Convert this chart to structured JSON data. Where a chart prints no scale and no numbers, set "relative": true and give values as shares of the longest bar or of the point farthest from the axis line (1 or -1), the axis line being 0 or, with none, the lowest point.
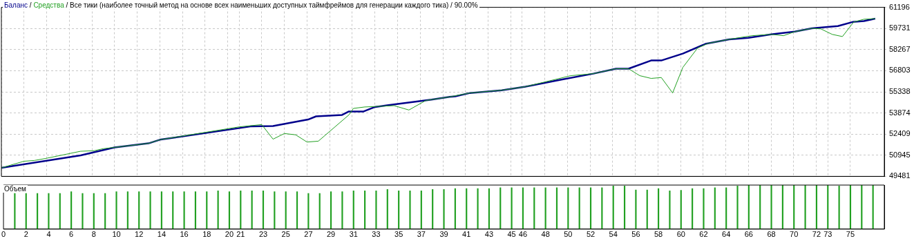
{
  "chart_data": [
    {
      "type": "line",
      "title": "Все тики (наиболее точный метод на основе всех наименьших доступных таймфреймов для генерации каждого тика) / 90.00%",
      "annotations": [
        "/",
        "/"
      ],
      "legend": "top left",
      "grid": true,
      "tick_labels": "y",
      "xlim": [
        0,
        78
      ],
      "xticks": [
        0,
        2,
        4,
        6,
        8,
        10,
        12,
        14,
        16,
        18,
        20,
        21,
        23,
        25,
        27,
        29,
        31,
        33,
        35,
        37,
        39,
        41,
        43,
        45,
        46,
        48,
        50,
        52,
        54,
        56,
        58,
        60,
        62,
        64,
        66,
        68,
        70,
        72,
        73,
        75
      ],
      "ylim": [
        49481,
        61196
      ],
      "yticks": [
        49481,
        50945,
        52409,
        53874,
        55338,
        56803,
        58267,
        59731,
        61196
      ],
      "series": [
        {
          "name": "Баланс",
          "color": "#00008b",
          "x": [
            0,
            7,
            10,
            13,
            14,
            22,
            24,
            27.1,
            27.8,
            30.1,
            30.7,
            32,
            33,
            34.2,
            38,
            39.6,
            40.1,
            41.4,
            44.2,
            46.3,
            49.4,
            52.3,
            54.3,
            55.4,
            57.4,
            58.3,
            60.2,
            62.2,
            64.3,
            66,
            68,
            70.1,
            71.6,
            73.9,
            75.2,
            76.2,
            77.2
          ],
          "values": [
            50070,
            50940,
            51490,
            51770,
            52020,
            52940,
            52970,
            53420,
            53640,
            53740,
            53980,
            53980,
            54290,
            54420,
            54800,
            54990,
            55030,
            55260,
            55450,
            55700,
            56180,
            56600,
            56940,
            56940,
            57510,
            57510,
            57990,
            58660,
            58980,
            59080,
            59320,
            59510,
            59740,
            59900,
            60180,
            60240,
            60410
          ]
        },
        {
          "name": "Средства",
          "color": "#22a022",
          "x": [
            0,
            2,
            2.9,
            3.9,
            7,
            8.2,
            9,
            10,
            13,
            14,
            21,
            23,
            24,
            25,
            26,
            27,
            28,
            30.7,
            31.1,
            32.1,
            34.7,
            36,
            37.5,
            38,
            39.6,
            41.4,
            44.2,
            46.3,
            49,
            50.3,
            52.3,
            54.3,
            55.4,
            56.4,
            57.4,
            58.3,
            59.3,
            60.2,
            61.5,
            62.4,
            64.3,
            66.3,
            68,
            69.1,
            70.1,
            71.6,
            72.4,
            73.4,
            74.3,
            75.3,
            76.2,
            77.2
          ],
          "values": [
            50070,
            50530,
            50580,
            50720,
            51220,
            51260,
            51400,
            51490,
            51770,
            52020,
            52910,
            53070,
            52060,
            52450,
            52360,
            51860,
            51920,
            53740,
            54190,
            54290,
            54380,
            54080,
            54740,
            54800,
            54990,
            55260,
            55450,
            55700,
            56210,
            56460,
            56600,
            56940,
            56940,
            56460,
            56270,
            56330,
            55260,
            57030,
            58370,
            58690,
            58980,
            59230,
            59320,
            59230,
            59510,
            59740,
            59700,
            59320,
            59170,
            60180,
            60370,
            60410
          ]
        }
      ]
    },
    {
      "type": "bar",
      "title": "Объем",
      "relative": true,
      "color": "#22a022",
      "tick_labels": "x",
      "xlim": [
        0,
        78
      ],
      "xticks": [
        0,
        2,
        4,
        6,
        8,
        10,
        12,
        14,
        16,
        18,
        20,
        21,
        23,
        25,
        27,
        29,
        31,
        33,
        35,
        37,
        39,
        41,
        43,
        45,
        46,
        48,
        50,
        52,
        54,
        56,
        58,
        60,
        62,
        64,
        66,
        68,
        70,
        72,
        73,
        75
      ],
      "x": [
        1,
        2,
        3,
        4,
        5,
        6,
        7,
        8,
        9,
        10,
        11,
        12,
        13,
        14,
        15,
        16,
        17,
        18,
        19,
        20,
        21,
        22,
        23,
        24,
        25,
        26,
        27,
        28,
        29,
        30,
        31,
        32,
        33,
        34,
        35,
        36,
        37,
        38,
        39,
        40,
        41,
        42,
        43,
        44,
        45,
        46,
        47,
        48,
        49,
        50,
        51,
        52,
        53,
        54,
        55,
        56,
        57,
        58,
        59,
        60,
        61,
        62,
        63,
        64,
        65,
        66,
        67,
        68,
        69,
        70,
        71,
        72,
        73,
        74,
        75,
        76,
        77
      ],
      "values": [
        0.81,
        0.81,
        0.81,
        0.81,
        0.81,
        0.85,
        0.81,
        0.81,
        0.81,
        0.85,
        0.85,
        0.85,
        0.85,
        0.85,
        0.85,
        0.85,
        0.85,
        0.85,
        0.87,
        0.85,
        0.87,
        0.87,
        0.87,
        0.85,
        0.85,
        0.85,
        0.81,
        0.81,
        0.85,
        0.85,
        0.87,
        0.87,
        0.87,
        0.9,
        0.87,
        0.87,
        0.87,
        0.9,
        0.9,
        0.92,
        0.92,
        0.92,
        0.92,
        0.94,
        0.94,
        0.94,
        0.94,
        0.94,
        0.94,
        0.94,
        0.94,
        0.94,
        0.94,
        0.98,
        0.98,
        0.89,
        0.89,
        0.92,
        0.87,
        0.88,
        0.92,
        0.92,
        0.94,
        0.94,
        0.98,
        1,
        1,
        1,
        1,
        1,
        1,
        1,
        1,
        0.98,
        1,
        1,
        1
      ]
    }
  ]
}
